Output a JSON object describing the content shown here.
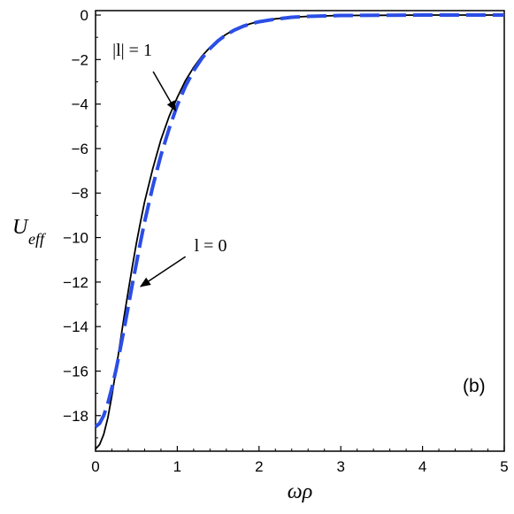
{
  "chart_data": {
    "type": "line",
    "x_label": "ωρ",
    "y_label_main": "U",
    "y_label_sub": "eff",
    "xlim": [
      0,
      5
    ],
    "ylim": [
      -19.6,
      0.2
    ],
    "x_ticks": [
      0,
      1,
      2,
      3,
      4,
      5
    ],
    "y_ticks": [
      0,
      -2,
      -4,
      -6,
      -8,
      -10,
      -12,
      -14,
      -16,
      -18
    ],
    "grid": false,
    "legend": "none",
    "panel_label": "(b)",
    "series": [
      {
        "style": "dashed",
        "color": "#2b4ee6",
        "x": [
          0,
          0.05,
          0.1,
          0.15,
          0.2,
          0.25,
          0.3,
          0.35,
          0.4,
          0.45,
          0.5,
          0.55,
          0.6,
          0.7,
          0.8,
          0.9,
          1.0,
          1.1,
          1.2,
          1.3,
          1.4,
          1.5,
          1.6,
          1.7,
          1.8,
          1.9,
          2.0,
          2.2,
          2.4,
          2.6,
          2.8,
          3.0,
          3.5,
          4.0,
          4.5,
          5.0
        ],
        "y": [
          -18.5,
          -18.35,
          -18.0,
          -17.45,
          -16.75,
          -15.95,
          -15.05,
          -14.1,
          -13.1,
          -12.1,
          -11.15,
          -10.2,
          -9.3,
          -7.7,
          -6.3,
          -5.1,
          -4.05,
          -3.2,
          -2.5,
          -1.95,
          -1.5,
          -1.15,
          -0.88,
          -0.67,
          -0.51,
          -0.39,
          -0.3,
          -0.18,
          -0.1,
          -0.06,
          -0.04,
          -0.02,
          -0.01,
          0,
          0,
          0
        ]
      },
      {
        "style": "solid",
        "color": "#000000",
        "x": [
          0,
          0.05,
          0.1,
          0.15,
          0.2,
          0.25,
          0.3,
          0.35,
          0.4,
          0.45,
          0.5,
          0.55,
          0.6,
          0.7,
          0.8,
          0.9,
          1.0,
          1.1,
          1.2,
          1.3,
          1.4,
          1.5,
          1.6,
          1.7,
          1.8,
          1.9,
          2.0,
          2.2,
          2.4,
          2.6,
          2.8,
          3.0,
          3.5,
          4.0,
          4.5,
          5.0
        ],
        "y": [
          -19.5,
          -19.3,
          -18.85,
          -18.1,
          -17.1,
          -15.95,
          -14.75,
          -13.55,
          -12.4,
          -11.3,
          -10.25,
          -9.3,
          -8.4,
          -6.9,
          -5.6,
          -4.55,
          -3.7,
          -2.95,
          -2.35,
          -1.85,
          -1.45,
          -1.12,
          -0.86,
          -0.66,
          -0.5,
          -0.38,
          -0.29,
          -0.17,
          -0.1,
          -0.06,
          -0.04,
          -0.02,
          -0.01,
          0,
          0,
          0
        ]
      }
    ],
    "annotations": [
      {
        "text": "|l| = 1",
        "from": [
          0.25,
          -2.3
        ],
        "to": [
          0.98,
          -4.3
        ]
      },
      {
        "text": "l = 0",
        "from": [
          1.1,
          -10.7
        ],
        "to": [
          0.55,
          -12.2
        ]
      }
    ]
  }
}
